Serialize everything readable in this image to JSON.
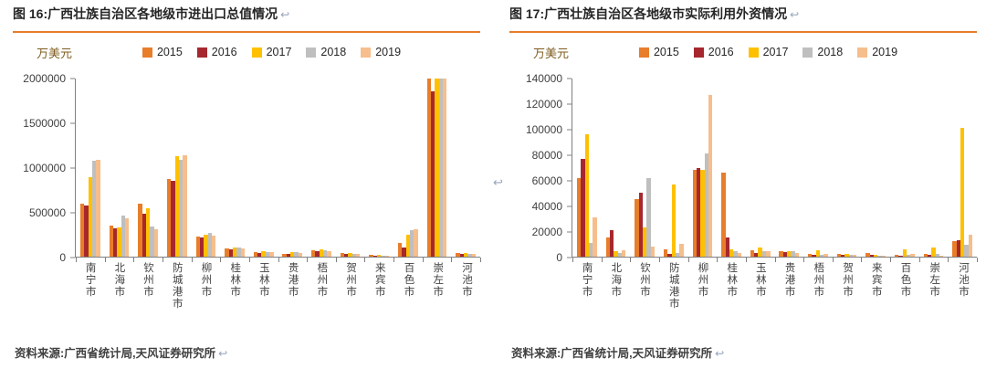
{
  "meta": {
    "return_mark": "↩"
  },
  "chart_data": [
    {
      "type": "bar",
      "title": "图 16:广西壮族自治区各地级市进出口总值情况",
      "unit_label": "万美元",
      "source": "资料来源:广西省统计局,天风证券研究所",
      "legend_position": "top",
      "grid": false,
      "ylim": [
        0,
        2000000
      ],
      "ytick_step": 500000,
      "categories": [
        "南宁市",
        "北海市",
        "钦州市",
        "防城港市",
        "柳州市",
        "桂林市",
        "玉林市",
        "贵港市",
        "梧州市",
        "贺州市",
        "来宾市",
        "百色市",
        "崇左市",
        "河池市"
      ],
      "series": [
        {
          "name": "2015",
          "color": "#E87D2A",
          "values": [
            600000,
            350000,
            600000,
            870000,
            230000,
            90000,
            50000,
            35000,
            70000,
            40000,
            20000,
            150000,
            2000000,
            40000
          ]
        },
        {
          "name": "2016",
          "color": "#A6282E",
          "values": [
            575000,
            320000,
            480000,
            855000,
            215000,
            80000,
            45000,
            30000,
            60000,
            30000,
            15000,
            105000,
            1860000,
            30000
          ]
        },
        {
          "name": "2017",
          "color": "#FFC000",
          "values": [
            890000,
            330000,
            545000,
            1130000,
            250000,
            105000,
            60000,
            50000,
            80000,
            40000,
            20000,
            250000,
            2000000,
            45000
          ]
        },
        {
          "name": "2018",
          "color": "#BFBFBF",
          "values": [
            1075000,
            465000,
            335000,
            1085000,
            270000,
            100000,
            55000,
            55000,
            70000,
            35000,
            15000,
            300000,
            2000000,
            35000
          ]
        },
        {
          "name": "2019",
          "color": "#F6BE8C",
          "values": [
            1090000,
            430000,
            310000,
            1140000,
            235000,
            90000,
            50000,
            45000,
            65000,
            30000,
            12000,
            310000,
            2000000,
            30000
          ]
        }
      ]
    },
    {
      "type": "bar",
      "title": "图 17:广西壮族自治区各地级市实际利用外资情况",
      "unit_label": "万美元",
      "source": "资料来源:广西省统计局,天风证券研究所",
      "legend_position": "top",
      "grid": false,
      "ylim": [
        0,
        140000
      ],
      "ytick_step": 20000,
      "categories": [
        "南宁市",
        "北海市",
        "钦州市",
        "防城港市",
        "柳州市",
        "桂林市",
        "玉林市",
        "贵港市",
        "梧州市",
        "贺州市",
        "来宾市",
        "百色市",
        "崇左市",
        "河池市"
      ],
      "series": [
        {
          "name": "2015",
          "color": "#E87D2A",
          "values": [
            62000,
            15000,
            45000,
            6000,
            68000,
            66000,
            5000,
            4000,
            2500,
            2000,
            3000,
            1200,
            2500,
            12000
          ]
        },
        {
          "name": "2016",
          "color": "#A6282E",
          "values": [
            77000,
            21000,
            50000,
            2000,
            70000,
            15000,
            3000,
            3500,
            1500,
            1200,
            1500,
            800,
            1500,
            13000
          ]
        },
        {
          "name": "2017",
          "color": "#FFC000",
          "values": [
            96000,
            4000,
            23000,
            57000,
            68000,
            6000,
            7000,
            4500,
            5000,
            2500,
            1500,
            6000,
            7000,
            101000
          ]
        },
        {
          "name": "2018",
          "color": "#BFBFBF",
          "values": [
            11000,
            3000,
            62000,
            3000,
            81000,
            4000,
            4500,
            4000,
            1500,
            1200,
            1000,
            1500,
            2000,
            9000
          ]
        },
        {
          "name": "2019",
          "color": "#F6BE8C",
          "values": [
            31000,
            5000,
            8000,
            10000,
            127000,
            3000,
            4000,
            3000,
            2500,
            1500,
            800,
            2500,
            1000,
            17000
          ]
        }
      ]
    }
  ]
}
